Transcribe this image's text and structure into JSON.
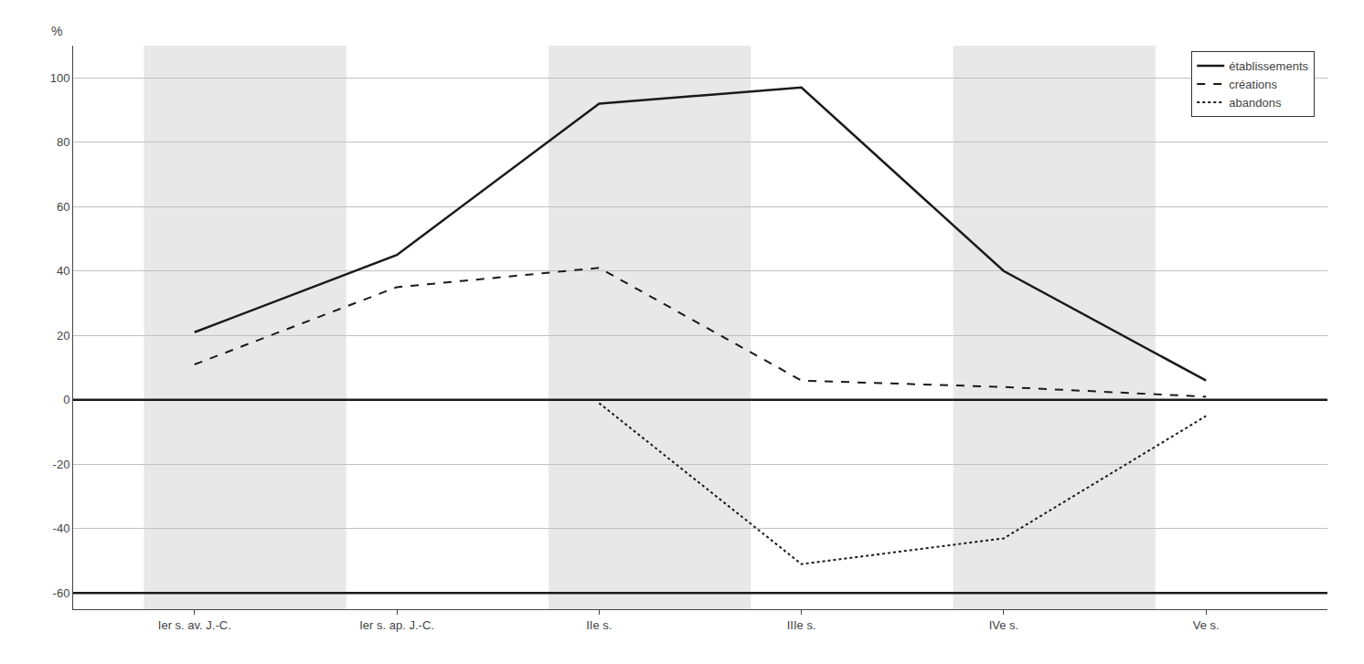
{
  "chart_data": {
    "type": "line",
    "series": [
      {
        "name": "établissements",
        "x": [
          1,
          3,
          5,
          7,
          9,
          11
        ],
        "values": [
          21,
          45,
          92,
          97,
          40,
          6
        ],
        "color": "#1a1a1a",
        "line_style": "solid"
      },
      {
        "name": "créations",
        "x": [
          1,
          3,
          5,
          7,
          9,
          11
        ],
        "values": [
          11,
          35,
          41,
          6,
          4,
          1
        ],
        "color": "#1a1a1a",
        "line_style": "dash"
      },
      {
        "name": "abandons",
        "x": [
          5,
          7,
          9,
          11
        ],
        "values": [
          -1,
          -51,
          -43,
          -5
        ],
        "color": "#1a1a1a",
        "line_style": "dot"
      }
    ],
    "y_label": "%",
    "xlim": [
      -0.2,
      12.2
    ],
    "xticks": [
      {
        "value": 1,
        "label": "Ier s. av. J.-C."
      },
      {
        "value": 3,
        "label": "Ier s. ap. J.-C."
      },
      {
        "value": 5,
        "label": "IIe s."
      },
      {
        "value": 7,
        "label": "IIIe s."
      },
      {
        "value": 9,
        "label": "IVe s."
      },
      {
        "value": 11,
        "label": "Ve s."
      }
    ],
    "ylim": [
      -65,
      110
    ],
    "yticks": [
      -60,
      -40,
      -20,
      0,
      20,
      40,
      60,
      80,
      100
    ],
    "shade_bands": [
      [
        0.5,
        2.5
      ],
      [
        4.5,
        6.5
      ],
      [
        8.5,
        10.5
      ]
    ],
    "shade_color": "#e8e8e8",
    "hlines": [
      0,
      -60
    ],
    "grid": true,
    "legend": "upper right"
  }
}
